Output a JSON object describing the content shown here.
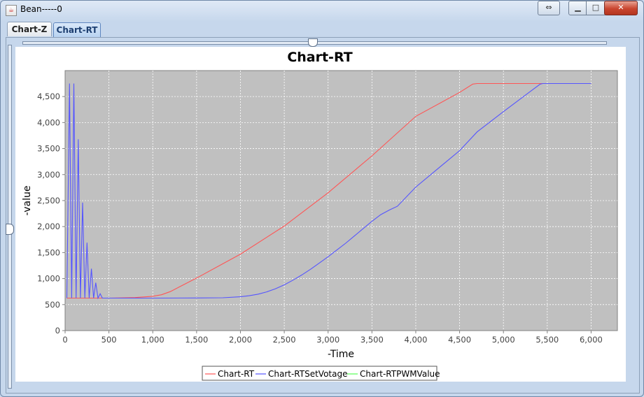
{
  "window": {
    "title": "Bean-----0"
  },
  "tabs": [
    {
      "label": "Chart-Z"
    },
    {
      "label": "Chart-RT"
    }
  ],
  "colors": {
    "plot_bg": "#c0c0c0",
    "series_rt": "#ff5555",
    "series_set": "#5555ff",
    "series_pwm": "#55ff55"
  },
  "chart_data": {
    "type": "line",
    "title": "Chart-RT",
    "xlabel": "-Time",
    "ylabel": "-value",
    "xlim": [
      0,
      6300
    ],
    "ylim": [
      0,
      4999
    ],
    "x_ticks": [
      0,
      500,
      1000,
      1500,
      2000,
      2500,
      3000,
      3500,
      4000,
      4500,
      5000,
      5500,
      6000
    ],
    "x_tick_labels": [
      "0",
      "500",
      "1,000",
      "1,500",
      "2,000",
      "2,500",
      "3,000",
      "3,500",
      "4,000",
      "4,500",
      "5,000",
      "5,500",
      "6,000"
    ],
    "y_ticks": [
      0,
      500,
      1000,
      1500,
      2000,
      2500,
      3000,
      3500,
      4000,
      4500
    ],
    "y_tick_labels": [
      "0",
      "500",
      "1,000",
      "1,500",
      "2,000",
      "2,500",
      "3,000",
      "3,500",
      "4,000",
      "4,500"
    ],
    "grid": true,
    "legend_position": "bottom",
    "series": [
      {
        "name": "Chart-RT",
        "color": "#ff5555",
        "points": [
          [
            20,
            625
          ],
          [
            500,
            625
          ],
          [
            800,
            635
          ],
          [
            1000,
            660
          ],
          [
            1100,
            690
          ],
          [
            1200,
            750
          ],
          [
            1500,
            1010
          ],
          [
            2000,
            1470
          ],
          [
            2500,
            2010
          ],
          [
            3000,
            2650
          ],
          [
            3500,
            3360
          ],
          [
            4000,
            4120
          ],
          [
            4500,
            4580
          ],
          [
            4650,
            4740
          ],
          [
            4700,
            4750
          ],
          [
            6000,
            4750
          ]
        ]
      },
      {
        "name": "Chart-RTSetVotage",
        "color": "#5555ff",
        "points": [
          [
            20,
            625
          ],
          [
            50,
            4750
          ],
          [
            75,
            625
          ],
          [
            100,
            4750
          ],
          [
            125,
            625
          ],
          [
            150,
            3680
          ],
          [
            175,
            625
          ],
          [
            200,
            2460
          ],
          [
            225,
            625
          ],
          [
            250,
            1690
          ],
          [
            275,
            625
          ],
          [
            300,
            1190
          ],
          [
            325,
            625
          ],
          [
            350,
            920
          ],
          [
            375,
            625
          ],
          [
            400,
            710
          ],
          [
            425,
            625
          ],
          [
            500,
            625
          ],
          [
            1000,
            625
          ],
          [
            1500,
            628
          ],
          [
            1800,
            632
          ],
          [
            2000,
            650
          ],
          [
            2100,
            670
          ],
          [
            2200,
            700
          ],
          [
            2300,
            745
          ],
          [
            2400,
            805
          ],
          [
            2500,
            880
          ],
          [
            2600,
            970
          ],
          [
            2700,
            1070
          ],
          [
            2800,
            1180
          ],
          [
            2900,
            1300
          ],
          [
            3000,
            1420
          ],
          [
            3100,
            1550
          ],
          [
            3200,
            1680
          ],
          [
            3300,
            1820
          ],
          [
            3400,
            1960
          ],
          [
            3500,
            2100
          ],
          [
            3600,
            2230
          ],
          [
            3700,
            2320
          ],
          [
            3790,
            2390
          ],
          [
            4000,
            2760
          ],
          [
            4500,
            3460
          ],
          [
            4700,
            3820
          ],
          [
            5000,
            4210
          ],
          [
            5300,
            4590
          ],
          [
            5420,
            4740
          ],
          [
            5450,
            4750
          ],
          [
            6000,
            4750
          ]
        ]
      },
      {
        "name": "Chart-RTPWMValue",
        "color": "#55ff55",
        "points": []
      }
    ]
  }
}
